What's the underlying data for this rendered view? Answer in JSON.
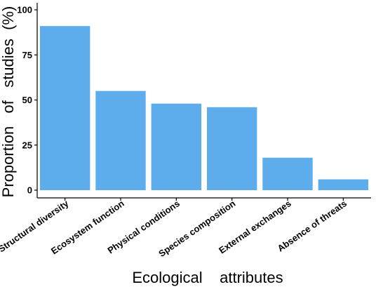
{
  "chart_data": {
    "type": "bar",
    "categories": [
      "Structural diversity",
      "Ecosystem function",
      "Physical conditions",
      "Species composition",
      "External exchanges",
      "Absence of threats"
    ],
    "values": [
      91,
      55,
      48,
      46,
      18,
      6
    ],
    "xlabel": "Ecological    attributes",
    "ylabel": "Proportion   of   studies  (%)",
    "ylim": [
      0,
      100
    ],
    "yticks": [
      0,
      25,
      50,
      75,
      100
    ],
    "grid": false,
    "legend": "none",
    "bar_color": "#5DADEC"
  }
}
